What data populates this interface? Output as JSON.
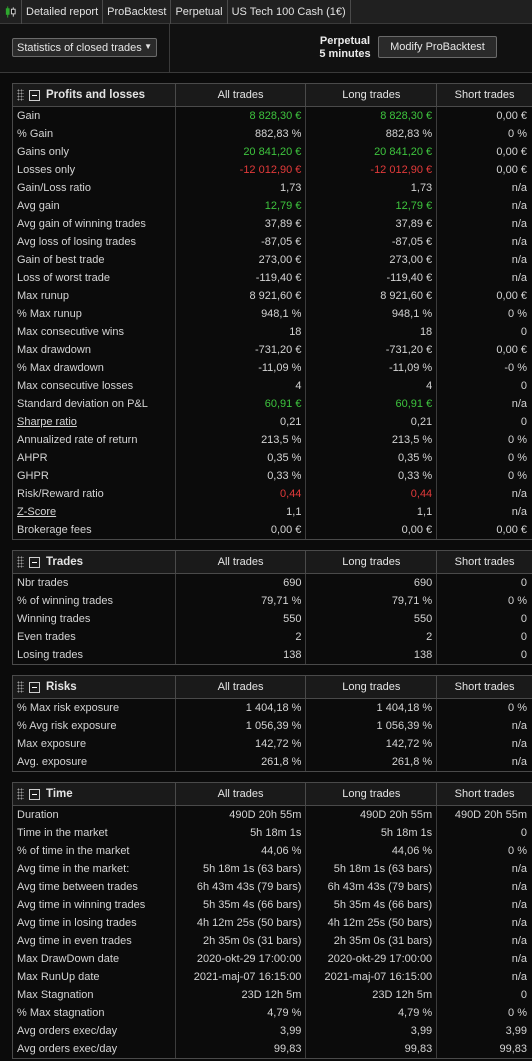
{
  "topbar": {
    "tabs": [
      "Detailed report",
      "ProBacktest",
      "Perpetual",
      "US Tech 100 Cash (1€)"
    ]
  },
  "controls": {
    "view_select": "Statistics of closed trades",
    "mode_line1": "Perpetual",
    "mode_line2": "5 minutes",
    "modify_label": "Modify ProBacktest"
  },
  "colors": {
    "positive": "#3ec43e",
    "negative": "#e23a3a"
  },
  "sections": [
    {
      "title": "Profits and losses",
      "columns": [
        "All trades",
        "Long trades",
        "Short trades"
      ],
      "rows": [
        {
          "label": "Gain",
          "values": [
            "8 828,30 €",
            "8 828,30 €",
            "0,00 €"
          ],
          "tone": [
            "pos",
            "pos",
            ""
          ]
        },
        {
          "label": "% Gain",
          "values": [
            "882,83 %",
            "882,83 %",
            "0 %"
          ]
        },
        {
          "label": "Gains only",
          "values": [
            "20 841,20 €",
            "20 841,20 €",
            "0,00 €"
          ],
          "tone": [
            "pos",
            "pos",
            ""
          ]
        },
        {
          "label": "Losses only",
          "values": [
            "-12 012,90 €",
            "-12 012,90 €",
            "0,00 €"
          ],
          "tone": [
            "neg",
            "neg",
            ""
          ]
        },
        {
          "label": "Gain/Loss ratio",
          "values": [
            "1,73",
            "1,73",
            "n/a"
          ]
        },
        {
          "label": "Avg gain",
          "values": [
            "12,79 €",
            "12,79 €",
            "n/a"
          ],
          "tone": [
            "pos",
            "pos",
            ""
          ]
        },
        {
          "label": "Avg gain of winning trades",
          "values": [
            "37,89 €",
            "37,89 €",
            "n/a"
          ]
        },
        {
          "label": "Avg loss of losing trades",
          "values": [
            "-87,05 €",
            "-87,05 €",
            "n/a"
          ]
        },
        {
          "label": "Gain of best trade",
          "values": [
            "273,00 €",
            "273,00 €",
            "n/a"
          ]
        },
        {
          "label": "Loss of worst trade",
          "values": [
            "-119,40 €",
            "-119,40 €",
            "n/a"
          ]
        },
        {
          "label": "Max runup",
          "values": [
            "8 921,60 €",
            "8 921,60 €",
            "0,00 €"
          ]
        },
        {
          "label": "% Max runup",
          "values": [
            "948,1 %",
            "948,1 %",
            "0 %"
          ]
        },
        {
          "label": "Max consecutive wins",
          "values": [
            "18",
            "18",
            "0"
          ]
        },
        {
          "label": "Max drawdown",
          "values": [
            "-731,20 €",
            "-731,20 €",
            "0,00 €"
          ]
        },
        {
          "label": "% Max drawdown",
          "values": [
            "-11,09 %",
            "-11,09 %",
            "-0 %"
          ]
        },
        {
          "label": "Max consecutive losses",
          "values": [
            "4",
            "4",
            "0"
          ]
        },
        {
          "label": "Standard deviation on P&L",
          "values": [
            "60,91 €",
            "60,91 €",
            "n/a"
          ],
          "tone": [
            "pos",
            "pos",
            ""
          ]
        },
        {
          "label": "Sharpe ratio",
          "values": [
            "0,21",
            "0,21",
            "0"
          ],
          "link": true
        },
        {
          "label": "Annualized rate of return",
          "values": [
            "213,5 %",
            "213,5 %",
            "0 %"
          ]
        },
        {
          "label": "AHPR",
          "values": [
            "0,35 %",
            "0,35 %",
            "0 %"
          ]
        },
        {
          "label": "GHPR",
          "values": [
            "0,33 %",
            "0,33 %",
            "0 %"
          ]
        },
        {
          "label": "Risk/Reward ratio",
          "values": [
            "0,44",
            "0,44",
            "n/a"
          ],
          "tone": [
            "neg",
            "neg",
            ""
          ]
        },
        {
          "label": "Z-Score",
          "values": [
            "1,1",
            "1,1",
            "n/a"
          ],
          "link": true
        },
        {
          "label": "Brokerage fees",
          "values": [
            "0,00 €",
            "0,00 €",
            "0,00 €"
          ]
        }
      ]
    },
    {
      "title": "Trades",
      "columns": [
        "All trades",
        "Long trades",
        "Short trades"
      ],
      "rows": [
        {
          "label": "Nbr trades",
          "values": [
            "690",
            "690",
            "0"
          ]
        },
        {
          "label": "% of winning trades",
          "values": [
            "79,71 %",
            "79,71 %",
            "0 %"
          ]
        },
        {
          "label": "Winning trades",
          "values": [
            "550",
            "550",
            "0"
          ]
        },
        {
          "label": "Even trades",
          "values": [
            "2",
            "2",
            "0"
          ]
        },
        {
          "label": "Losing trades",
          "values": [
            "138",
            "138",
            "0"
          ]
        }
      ]
    },
    {
      "title": "Risks",
      "columns": [
        "All trades",
        "Long trades",
        "Short trades"
      ],
      "rows": [
        {
          "label": "% Max risk exposure",
          "values": [
            "1 404,18 %",
            "1 404,18 %",
            "0 %"
          ]
        },
        {
          "label": "% Avg risk exposure",
          "values": [
            "1 056,39 %",
            "1 056,39 %",
            "n/a"
          ]
        },
        {
          "label": "Max exposure",
          "values": [
            "142,72 %",
            "142,72 %",
            "n/a"
          ]
        },
        {
          "label": "Avg. exposure",
          "values": [
            "261,8 %",
            "261,8 %",
            "n/a"
          ]
        }
      ]
    },
    {
      "title": "Time",
      "columns": [
        "All trades",
        "Long trades",
        "Short trades"
      ],
      "rows": [
        {
          "label": "Duration",
          "values": [
            "490D 20h 55m",
            "490D 20h 55m",
            "490D 20h 55m"
          ]
        },
        {
          "label": "Time in the market",
          "values": [
            "5h 18m 1s",
            "5h 18m 1s",
            "0"
          ]
        },
        {
          "label": "% of time in the market",
          "values": [
            "44,06 %",
            "44,06 %",
            "0 %"
          ]
        },
        {
          "label": "Avg time in the market:",
          "values": [
            "5h 18m 1s (63 bars)",
            "5h 18m 1s (63 bars)",
            "n/a"
          ]
        },
        {
          "label": "Avg time between trades",
          "values": [
            "6h 43m 43s (79 bars)",
            "6h 43m 43s (79 bars)",
            "n/a"
          ]
        },
        {
          "label": "Avg time in winning trades",
          "values": [
            "5h 35m 4s (66 bars)",
            "5h 35m 4s (66 bars)",
            "n/a"
          ]
        },
        {
          "label": "Avg time in losing trades",
          "values": [
            "4h 12m 25s (50 bars)",
            "4h 12m 25s (50 bars)",
            "n/a"
          ]
        },
        {
          "label": "Avg time in even trades",
          "values": [
            "2h 35m 0s (31 bars)",
            "2h 35m 0s (31 bars)",
            "n/a"
          ]
        },
        {
          "label": "Max DrawDown date",
          "values": [
            "2020-okt-29 17:00:00",
            "2020-okt-29 17:00:00",
            "n/a"
          ]
        },
        {
          "label": "Max RunUp date",
          "values": [
            "2021-maj-07 16:15:00",
            "2021-maj-07 16:15:00",
            "n/a"
          ]
        },
        {
          "label": "Max Stagnation",
          "values": [
            "23D 12h 5m",
            "23D 12h 5m",
            "0"
          ]
        },
        {
          "label": "% Max stagnation",
          "values": [
            "4,79 %",
            "4,79 %",
            "0 %"
          ]
        },
        {
          "label": "Avg orders exec/day",
          "values": [
            "3,99",
            "3,99",
            "3,99"
          ]
        },
        {
          "label": "Avg orders exec/day",
          "values": [
            "99,83",
            "99,83",
            "99,83"
          ]
        }
      ]
    }
  ]
}
